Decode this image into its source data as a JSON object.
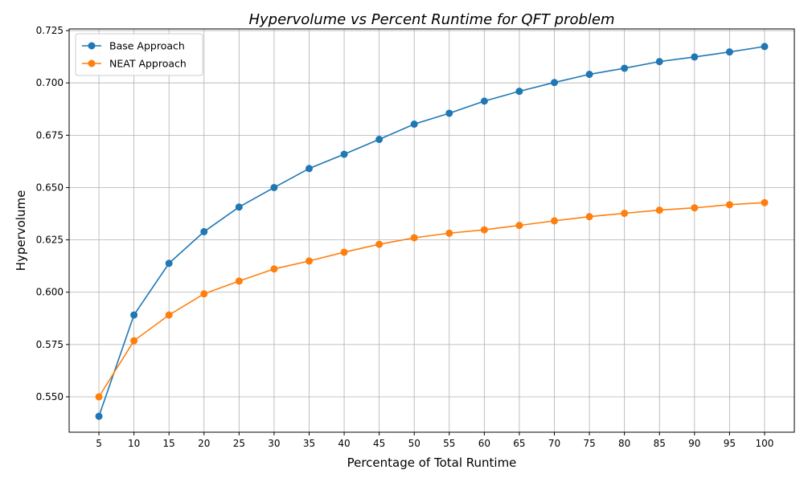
{
  "chart_data": {
    "type": "line",
    "title": "Hypervolume vs Percent Runtime for QFT problem",
    "xlabel": "Percentage of Total Runtime",
    "ylabel": "Hypervolume",
    "x": [
      5,
      10,
      15,
      20,
      25,
      30,
      35,
      40,
      45,
      50,
      55,
      60,
      65,
      70,
      75,
      80,
      85,
      90,
      95,
      100
    ],
    "x_tick_labels": [
      "5",
      "10",
      "15",
      "20",
      "25",
      "30",
      "35",
      "40",
      "45",
      "50",
      "55",
      "60",
      "65",
      "70",
      "75",
      "80",
      "85",
      "90",
      "95",
      "100"
    ],
    "y_ticks": [
      0.55,
      0.575,
      0.6,
      0.625,
      0.65,
      0.675,
      0.7,
      0.725
    ],
    "y_tick_labels": [
      "0.550",
      "0.575",
      "0.600",
      "0.625",
      "0.650",
      "0.675",
      "0.700",
      "0.725"
    ],
    "xlim": [
      0.75,
      104.25
    ],
    "ylim": [
      0.5331,
      0.7258
    ],
    "grid": true,
    "legend_position": "top-left",
    "series": [
      {
        "name": "Base Approach",
        "color": "#1f77b4",
        "marker": "circle",
        "values": [
          0.5407,
          0.5891,
          0.6138,
          0.6289,
          0.6407,
          0.65,
          0.6591,
          0.6659,
          0.673,
          0.6803,
          0.6855,
          0.6913,
          0.696,
          0.7002,
          0.7041,
          0.707,
          0.7102,
          0.7124,
          0.7148,
          0.7174
        ]
      },
      {
        "name": "NEAT Approach",
        "color": "#ff7f0e",
        "marker": "circle",
        "values": [
          0.55,
          0.5768,
          0.5891,
          0.5992,
          0.6053,
          0.6111,
          0.6149,
          0.6191,
          0.6229,
          0.626,
          0.6282,
          0.6298,
          0.6319,
          0.6341,
          0.6361,
          0.6377,
          0.6392,
          0.6403,
          0.6418,
          0.6428
        ]
      }
    ]
  }
}
